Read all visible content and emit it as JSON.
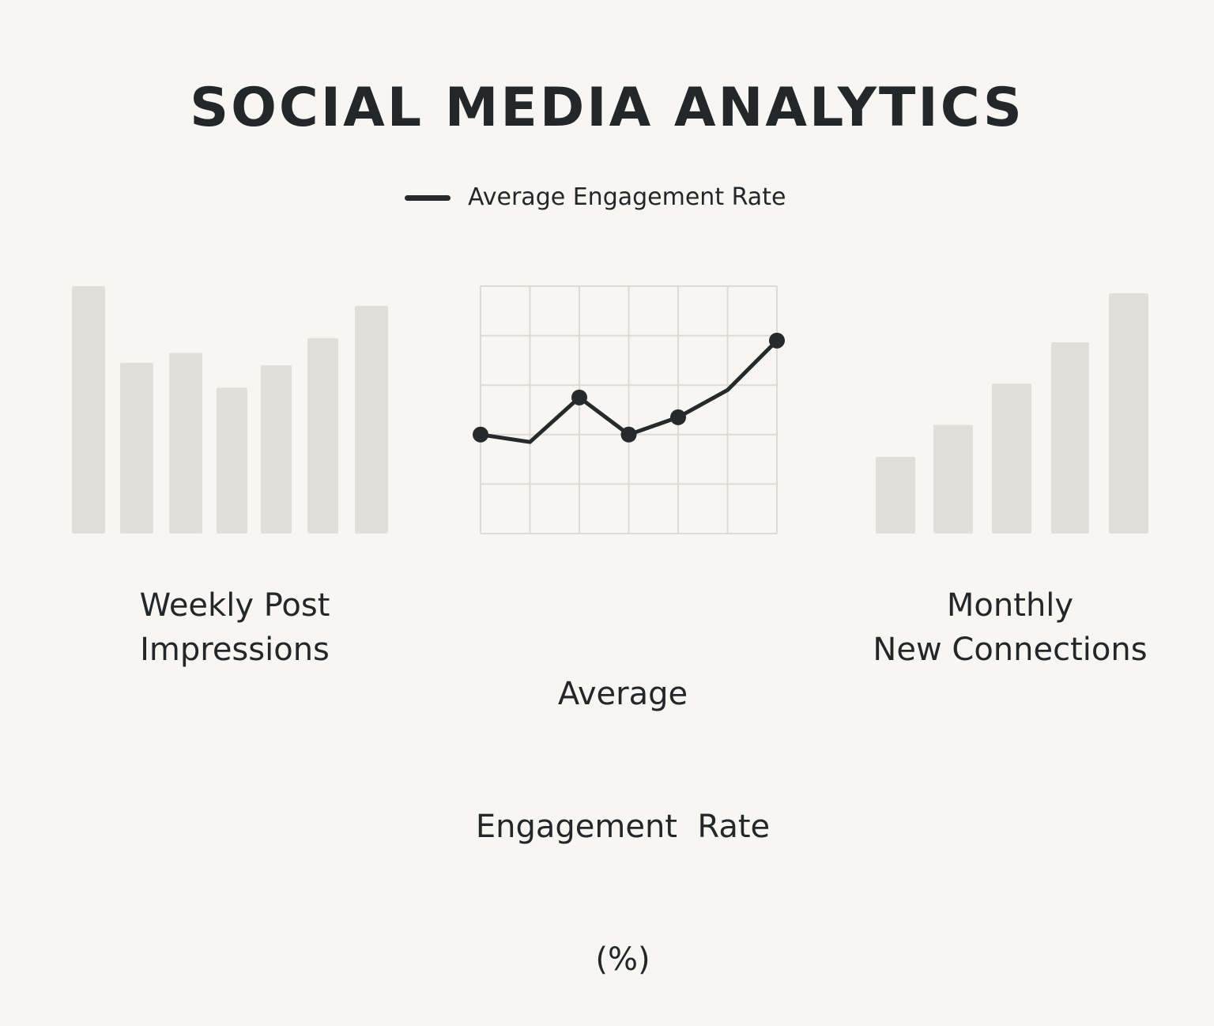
{
  "title": "SOCIAL MEDIA ANALYTICS",
  "legend": {
    "label": "Average Engagement Rate",
    "color": "#262a2d"
  },
  "colors": {
    "background": "#f8f6f2",
    "bar": "#e2dfda",
    "grid": "#dedbd6",
    "line": "#262a2d",
    "text": "#23272a"
  },
  "chart_data": [
    {
      "type": "bar",
      "caption_lines": [
        "Weekly Post",
        "Impressions"
      ],
      "values": [
        100,
        69,
        73,
        59,
        68,
        79,
        92
      ],
      "ylim": [
        0,
        100
      ],
      "axes_shown": false
    },
    {
      "type": "line",
      "caption_lines": [
        "Average",
        "Engagement  Rate",
        "(%)"
      ],
      "legend": "Average Engagement Rate",
      "x": [
        0,
        1,
        2,
        3,
        4,
        5,
        6
      ],
      "values": [
        2.0,
        1.85,
        2.75,
        2.0,
        2.35,
        2.9,
        3.9
      ],
      "markers": [
        true,
        false,
        true,
        true,
        true,
        false,
        true
      ],
      "ylim": [
        0,
        5
      ],
      "grid": true,
      "grid_columns": 6,
      "grid_rows": 5
    },
    {
      "type": "bar",
      "caption_lines": [
        "Monthly",
        "New Connections"
      ],
      "values": [
        100,
        142,
        196,
        250,
        314
      ],
      "ylim": [
        0,
        314
      ],
      "axes_shown": false
    }
  ]
}
